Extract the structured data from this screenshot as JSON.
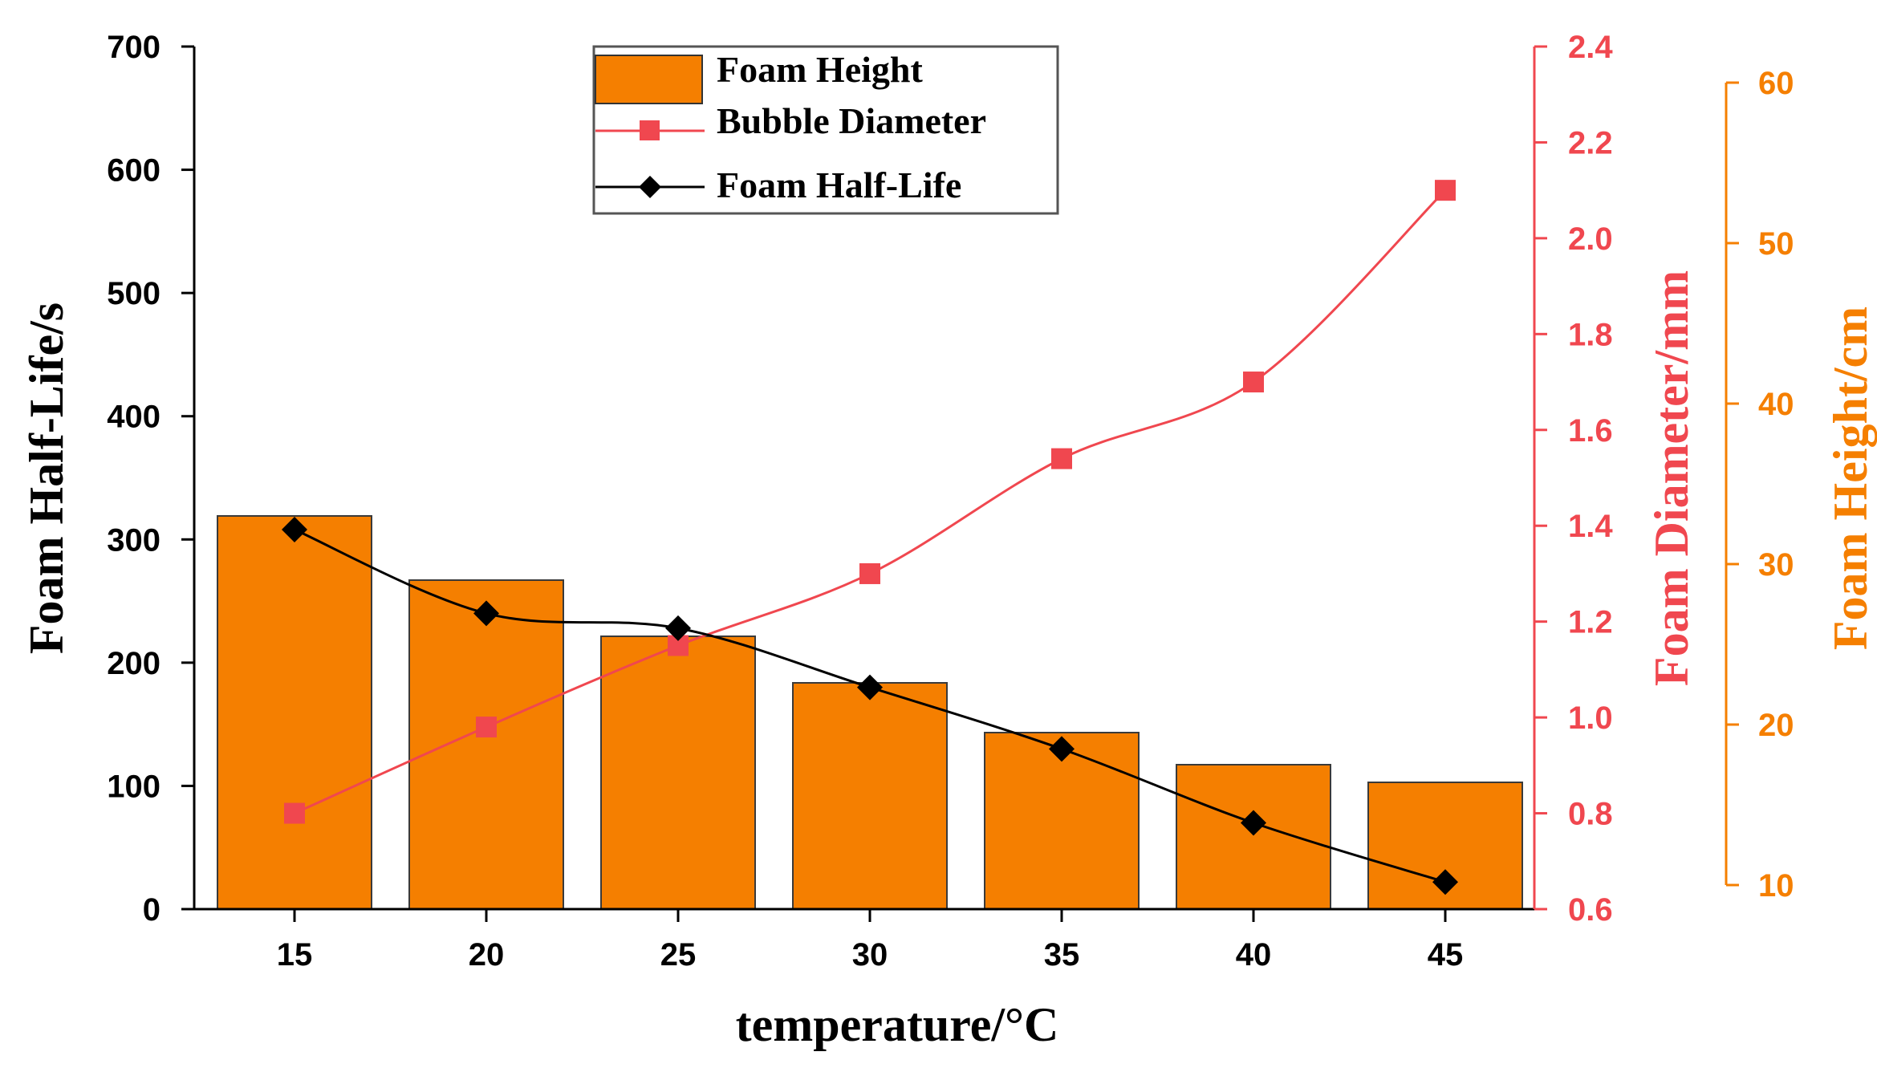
{
  "chart_data": {
    "type": "bar",
    "title": "",
    "xlabel": "temperature/°C",
    "categories": [
      "15",
      "20",
      "25",
      "30",
      "35",
      "40",
      "45"
    ],
    "axes": {
      "left": {
        "label": "Foam Half-Life/s",
        "range": [
          0,
          700
        ],
        "ticks": [
          "0",
          "100",
          "200",
          "300",
          "400",
          "500",
          "600",
          "700"
        ],
        "color": "#000000"
      },
      "right1": {
        "label": "Foam Diameter/mm",
        "range": [
          0.6,
          2.4
        ],
        "ticks": [
          "0.6",
          "0.8",
          "1.0",
          "1.2",
          "1.4",
          "1.6",
          "1.8",
          "2.0",
          "2.2",
          "2.4"
        ],
        "color": "#f0474f"
      },
      "right2": {
        "label": "Foam Height/cm",
        "range": [
          10,
          60
        ],
        "ticks": [
          "10",
          "20",
          "30",
          "40",
          "50",
          "60"
        ],
        "color": "#f57f00"
      }
    },
    "series": [
      {
        "name": "Foam Height",
        "type": "bar",
        "axis": "right2",
        "color": "#f57f00",
        "values": [
          33,
          29,
          25.5,
          22.6,
          19.5,
          17.5,
          16.4
        ]
      },
      {
        "name": "Bubble Diameter",
        "type": "line",
        "marker": "square",
        "axis": "right1",
        "color": "#f0474f",
        "values": [
          0.8,
          0.98,
          1.15,
          1.3,
          1.54,
          1.7,
          2.1
        ]
      },
      {
        "name": "Foam Half-Life",
        "type": "line",
        "marker": "diamond",
        "axis": "left",
        "color": "#000000",
        "values": [
          308,
          240,
          228,
          180,
          130,
          70,
          22
        ]
      }
    ],
    "legend": {
      "position": "top-center",
      "entries": [
        "Foam Height",
        "Bubble Diameter",
        "Foam Half-Life"
      ]
    }
  }
}
